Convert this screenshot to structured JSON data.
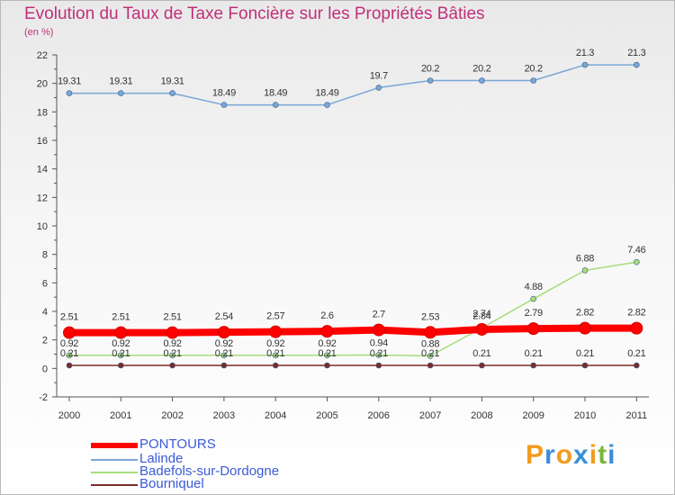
{
  "title": "Evolution du Taux de Taxe Foncière sur les Propriétés Bâties",
  "unit_label": "(en %)",
  "logo": "Proxiti",
  "chart_data": {
    "type": "line",
    "title": "Evolution du Taux de Taxe Foncière sur les Propriétés Bâties",
    "ylabel": "(en %)",
    "ylim": [
      -2,
      22
    ],
    "yticks": [
      -2,
      0,
      2,
      4,
      6,
      8,
      10,
      12,
      14,
      16,
      18,
      20,
      22
    ],
    "categories": [
      "2000",
      "2001",
      "2002",
      "2003",
      "2004",
      "2005",
      "2006",
      "2007",
      "2008",
      "2009",
      "2010",
      "2011"
    ],
    "grid": false,
    "legend_position": "bottom-left",
    "series": [
      {
        "name": "PONTOURS",
        "color": "#ff0000",
        "values": [
          2.51,
          2.51,
          2.51,
          2.54,
          2.57,
          2.6,
          2.7,
          2.53,
          2.74,
          2.79,
          2.82,
          2.82
        ],
        "labels": [
          "2.51",
          "2.51",
          "2.51",
          "2.54",
          "2.57",
          "2.6",
          "2.7",
          "2.53",
          "2.74",
          "2.79",
          "2.82",
          "2.82"
        ]
      },
      {
        "name": "Lalinde",
        "color": "#7aa7d6",
        "values": [
          19.31,
          19.31,
          19.31,
          18.49,
          18.49,
          18.49,
          19.7,
          20.2,
          20.2,
          20.2,
          21.3,
          21.3
        ],
        "labels": [
          "19.31",
          "19.31",
          "19.31",
          "18.49",
          "18.49",
          "18.49",
          "19.7",
          "20.2",
          "20.2",
          "20.2",
          "21.3",
          "21.3"
        ]
      },
      {
        "name": "Badefols-sur-Dordogne",
        "color": "#a8dc7a",
        "values": [
          0.92,
          0.92,
          0.92,
          0.92,
          0.92,
          0.92,
          0.94,
          0.88,
          2.84,
          4.88,
          6.88,
          7.46
        ],
        "labels": [
          "0.92",
          "0.92",
          "0.92",
          "0.92",
          "0.92",
          "0.92",
          "0.94",
          "0.88",
          "2.84",
          "4.88",
          "6.88",
          "7.46"
        ]
      },
      {
        "name": "Bourniquel",
        "color": "#7a2b2b",
        "values": [
          0.21,
          0.21,
          0.21,
          0.21,
          0.21,
          0.21,
          0.21,
          0.21,
          0.21,
          0.21,
          0.21,
          0.21
        ],
        "labels": [
          "0.21",
          "0.21",
          "0.21",
          "0.21",
          "0.21",
          "0.21",
          "0.21",
          "0.21",
          "0.21",
          "0.21",
          "0.21",
          "0.21"
        ]
      }
    ]
  }
}
